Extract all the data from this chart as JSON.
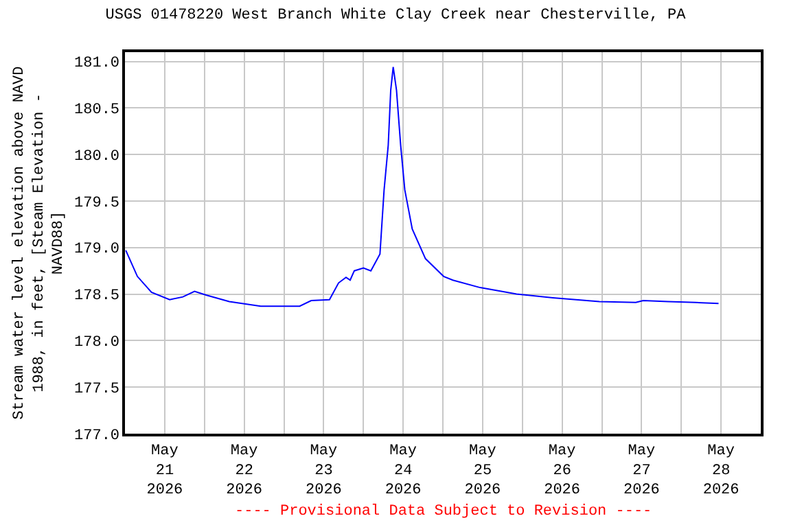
{
  "chart_data": {
    "type": "line",
    "title": "USGS 01478220 West Branch White Clay Creek near Chesterville, PA",
    "ylabel": "Stream water level elevation above NAVD\n1988, in feet, [Steam Elevation -\nNAVD88]",
    "annotations": [
      "---- Provisional Data Subject to Revision ----"
    ],
    "x": [
      "2026-05-21T00:15",
      "2026-05-21T03:45",
      "2026-05-21T08:00",
      "2026-05-21T13:30",
      "2026-05-21T17:30",
      "2026-05-21T21:00",
      "2026-05-22T00:30",
      "2026-05-22T07:30",
      "2026-05-22T17:00",
      "2026-05-23T04:45",
      "2026-05-23T08:15",
      "2026-05-23T13:45",
      "2026-05-23T16:30",
      "2026-05-23T18:45",
      "2026-05-23T20:00",
      "2026-05-23T21:15",
      "2026-05-24T00:00",
      "2026-05-24T02:15",
      "2026-05-24T05:00",
      "2026-05-24T06:15",
      "2026-05-24T07:30",
      "2026-05-24T08:15",
      "2026-05-24T09:00",
      "2026-05-24T10:00",
      "2026-05-24T11:15",
      "2026-05-24T12:30",
      "2026-05-24T14:45",
      "2026-05-24T18:45",
      "2026-05-25T00:15",
      "2026-05-25T03:00",
      "2026-05-25T11:15",
      "2026-05-25T22:15",
      "2026-05-26T09:15",
      "2026-05-26T23:15",
      "2026-05-27T10:15",
      "2026-05-27T12:30",
      "2026-05-27T20:00",
      "2026-05-28T04:15",
      "2026-05-28T11:15"
    ],
    "series": [
      {
        "color": "#0000ff",
        "values": [
          178.97,
          178.69,
          178.52,
          178.44,
          178.47,
          178.53,
          178.49,
          178.42,
          178.37,
          178.37,
          178.43,
          178.44,
          178.62,
          178.68,
          178.65,
          178.75,
          178.78,
          178.75,
          178.93,
          179.62,
          180.1,
          180.69,
          180.94,
          180.69,
          180.1,
          179.62,
          179.2,
          178.88,
          178.69,
          178.65,
          178.57,
          178.5,
          178.46,
          178.42,
          178.41,
          178.43,
          178.42,
          178.41,
          178.4
        ]
      }
    ],
    "xlim": [
      "2026-05-21",
      "2026-05-29"
    ],
    "xticks": [
      {
        "value": "2026-05-21T12:00",
        "label": "May\n21\n2026"
      },
      {
        "value": "2026-05-22T12:00",
        "label": "May\n22\n2026"
      },
      {
        "value": "2026-05-23T12:00",
        "label": "May\n23\n2026"
      },
      {
        "value": "2026-05-24T12:00",
        "label": "May\n24\n2026"
      },
      {
        "value": "2026-05-25T12:00",
        "label": "May\n25\n2026"
      },
      {
        "value": "2026-05-26T12:00",
        "label": "May\n26\n2026"
      },
      {
        "value": "2026-05-27T12:00",
        "label": "May\n27\n2026"
      },
      {
        "value": "2026-05-28T12:00",
        "label": "May\n28\n2026"
      },
      {
        "value": "2026-05-22",
        "label": null
      },
      {
        "value": "2026-05-23",
        "label": null
      },
      {
        "value": "2026-05-24",
        "label": null
      },
      {
        "value": "2026-05-25",
        "label": null
      },
      {
        "value": "2026-05-26",
        "label": null
      },
      {
        "value": "2026-05-27",
        "label": null
      },
      {
        "value": "2026-05-28",
        "label": null
      }
    ],
    "ylim": [
      177.0,
      181.1
    ],
    "yticks": [
      {
        "value": 177.0,
        "label": "177.0"
      },
      {
        "value": 177.5,
        "label": "177.5"
      },
      {
        "value": 178.0,
        "label": "178.0"
      },
      {
        "value": 178.5,
        "label": "178.5"
      },
      {
        "value": 179.0,
        "label": "179.0"
      },
      {
        "value": 179.5,
        "label": "179.5"
      },
      {
        "value": 180.0,
        "label": "180.0"
      },
      {
        "value": 180.5,
        "label": "180.5"
      },
      {
        "value": 181.0,
        "label": "181.0"
      }
    ],
    "grid": true,
    "marker": "none",
    "line_style": "solid"
  }
}
